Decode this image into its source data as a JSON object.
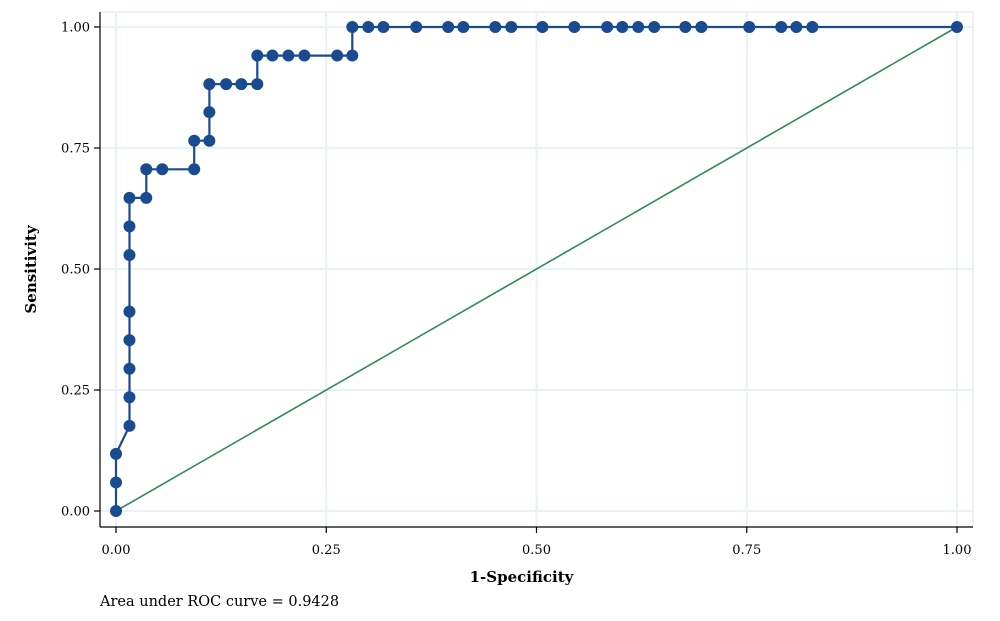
{
  "chart_data": {
    "type": "line",
    "title": "",
    "xlabel": "1-Specificity",
    "ylabel": "Sensitivity",
    "xlim": [
      0,
      1
    ],
    "ylim": [
      0,
      1
    ],
    "x_ticks": [
      {
        "value": 0,
        "label": "0.00"
      },
      {
        "value": 0.25,
        "label": "0.25"
      },
      {
        "value": 0.5,
        "label": "0.50"
      },
      {
        "value": 0.75,
        "label": "0.75"
      },
      {
        "value": 1,
        "label": "1.00"
      }
    ],
    "y_ticks": [
      {
        "value": 0,
        "label": "0.00"
      },
      {
        "value": 0.25,
        "label": "0.25"
      },
      {
        "value": 0.5,
        "label": "0.50"
      },
      {
        "value": 0.75,
        "label": "0.75"
      },
      {
        "value": 1,
        "label": "1.00"
      }
    ],
    "grid": true,
    "colors": {
      "roc": "#1a4a8f",
      "reference": "#2e8b57",
      "grid": "#e8f1f3",
      "plot_border": "#d9e3e8"
    },
    "series": [
      {
        "role": "roc",
        "points": [
          [
            0.0,
            0.0
          ],
          [
            0.0,
            0.059
          ],
          [
            0.0,
            0.118
          ],
          [
            0.016,
            0.176
          ],
          [
            0.016,
            0.235
          ],
          [
            0.016,
            0.294
          ],
          [
            0.016,
            0.353
          ],
          [
            0.016,
            0.412
          ],
          [
            0.016,
            0.529
          ],
          [
            0.016,
            0.588
          ],
          [
            0.016,
            0.647
          ],
          [
            0.036,
            0.647
          ],
          [
            0.036,
            0.706
          ],
          [
            0.055,
            0.706
          ],
          [
            0.093,
            0.706
          ],
          [
            0.093,
            0.765
          ],
          [
            0.111,
            0.765
          ],
          [
            0.111,
            0.824
          ],
          [
            0.111,
            0.882
          ],
          [
            0.131,
            0.882
          ],
          [
            0.149,
            0.882
          ],
          [
            0.168,
            0.882
          ],
          [
            0.168,
            0.941
          ],
          [
            0.186,
            0.941
          ],
          [
            0.205,
            0.941
          ],
          [
            0.224,
            0.941
          ],
          [
            0.263,
            0.941
          ],
          [
            0.281,
            0.941
          ],
          [
            0.281,
            1.0
          ],
          [
            0.3,
            1.0
          ],
          [
            0.318,
            1.0
          ],
          [
            0.357,
            1.0
          ],
          [
            0.395,
            1.0
          ],
          [
            0.413,
            1.0
          ],
          [
            0.451,
            1.0
          ],
          [
            0.47,
            1.0
          ],
          [
            0.507,
            1.0
          ],
          [
            0.545,
            1.0
          ],
          [
            0.584,
            1.0
          ],
          [
            0.602,
            1.0
          ],
          [
            0.621,
            1.0
          ],
          [
            0.64,
            1.0
          ],
          [
            0.677,
            1.0
          ],
          [
            0.696,
            1.0
          ],
          [
            0.753,
            1.0
          ],
          [
            0.791,
            1.0
          ],
          [
            0.809,
            1.0
          ],
          [
            0.828,
            1.0
          ],
          [
            1.0,
            1.0
          ]
        ]
      },
      {
        "role": "reference",
        "points": [
          [
            0,
            0
          ],
          [
            1,
            1
          ]
        ]
      }
    ],
    "annotation": "Area under ROC curve = 0.9428"
  }
}
